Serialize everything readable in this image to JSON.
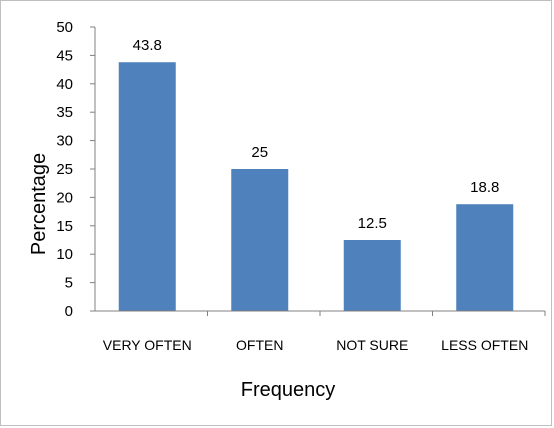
{
  "chart_data": {
    "type": "bar",
    "categories": [
      "VERY OFTEN",
      "OFTEN",
      "NOT SURE",
      "LESS OFTEN"
    ],
    "values": [
      43.8,
      25,
      12.5,
      18.8
    ],
    "data_labels": [
      "43.8",
      "25",
      "12.5",
      "18.8"
    ],
    "xlabel": "Frequency",
    "ylabel": "Percentage",
    "ylim": [
      0,
      50
    ],
    "yticks": [
      0,
      5,
      10,
      15,
      20,
      25,
      30,
      35,
      40,
      45,
      50
    ],
    "grid": false,
    "legend": "none",
    "bar_color": "#4F81BD"
  }
}
